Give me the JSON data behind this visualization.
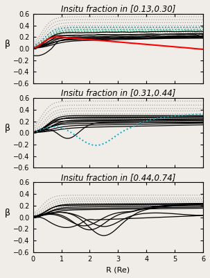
{
  "panel_titles": [
    "Insitu fraction in [0.13,0.30]",
    "Insitu fraction in [0.31,0.44]",
    "Insitu fraction in [0.44,0.74]"
  ],
  "ylim": [
    -0.6,
    0.6
  ],
  "xlim": [
    0,
    6
  ],
  "xlabel": "R (Re)",
  "ylabel": "β",
  "yticks": [
    -0.6,
    -0.4,
    -0.2,
    0.0,
    0.2,
    0.4,
    0.6
  ],
  "xticks": [
    0,
    1,
    2,
    3,
    4,
    5,
    6
  ],
  "bg_color": "#f0ede8",
  "title_fontsize": 8.5,
  "axis_fontsize": 8,
  "tick_fontsize": 7
}
